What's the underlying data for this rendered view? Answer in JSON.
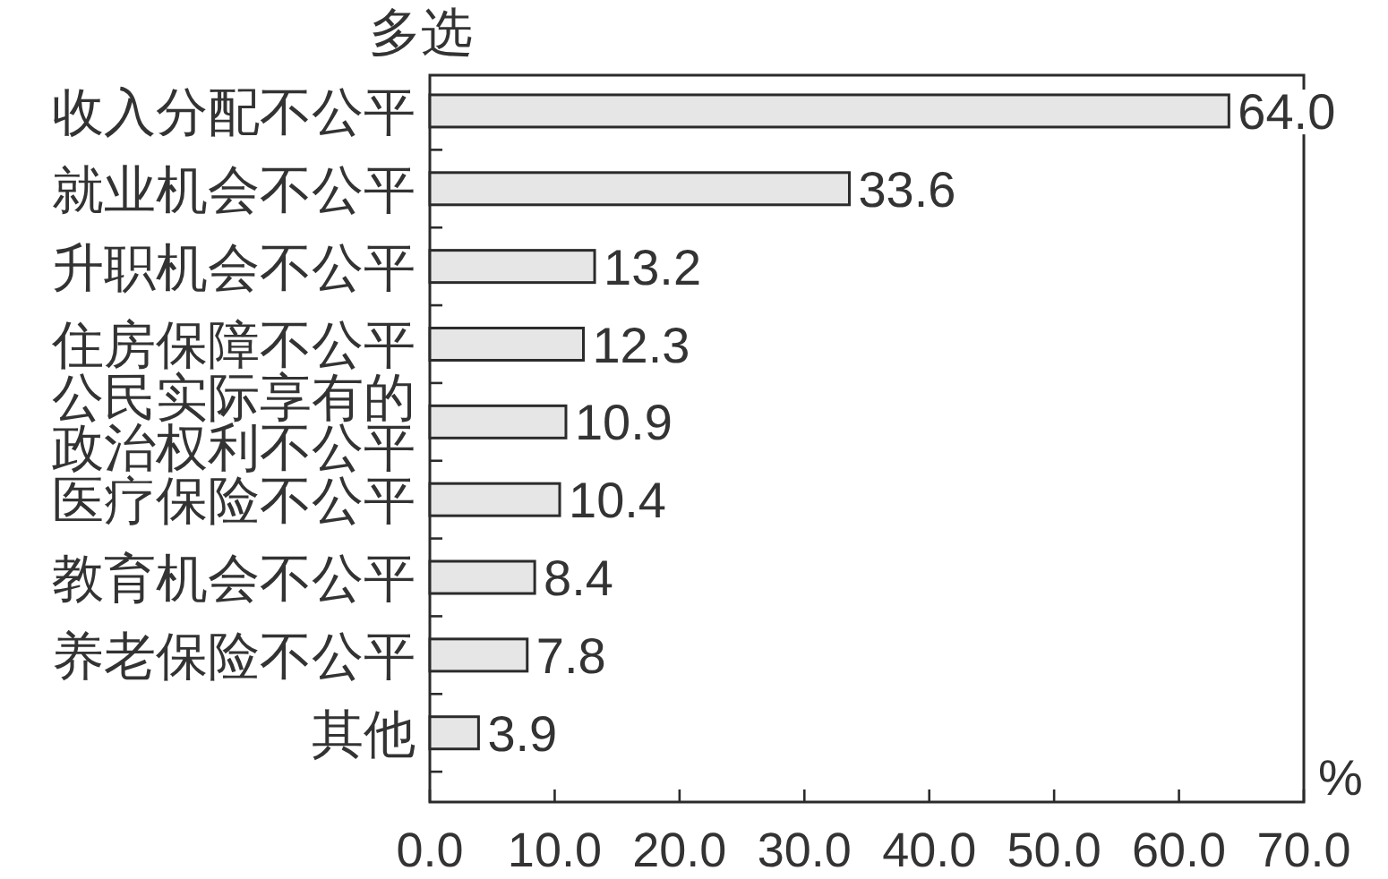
{
  "chart_data": {
    "type": "bar",
    "orientation": "horizontal",
    "annotations": [
      "多选"
    ],
    "xlabel": "%",
    "categories": [
      "收入分配不公平",
      "就业机会不公平",
      "升职机会不公平",
      "住房保障不公平",
      "公民实际享有的政治权利不公平",
      "医疗保险不公平",
      "教育机会不公平",
      "养老保险不公平",
      "其他"
    ],
    "values": [
      64.0,
      33.6,
      13.2,
      12.3,
      10.9,
      10.4,
      8.4,
      7.8,
      3.9
    ],
    "value_labels": [
      "64.0",
      "33.6",
      "13.2",
      "12.3",
      "10.9",
      "10.4",
      "8.4",
      "7.8",
      "3.9"
    ],
    "color": "#e6e6e6",
    "xlim": [
      0,
      70
    ],
    "xticks": [
      {
        "value": 0,
        "label": "0.0"
      },
      {
        "value": 10,
        "label": "10.0"
      },
      {
        "value": 20,
        "label": "20.0"
      },
      {
        "value": 30,
        "label": "30.0"
      },
      {
        "value": 40,
        "label": "40.0"
      },
      {
        "value": 50,
        "label": "50.0"
      },
      {
        "value": 60,
        "label": "60.0"
      },
      {
        "value": 70,
        "label": "70.0"
      }
    ]
  }
}
